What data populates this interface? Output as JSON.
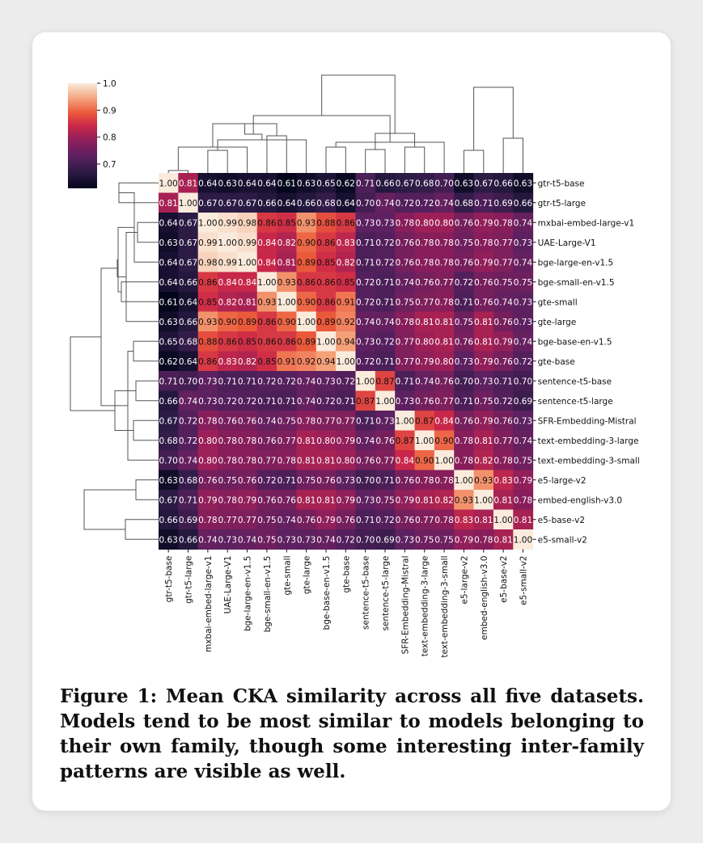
{
  "caption": "Figure 1: Mean CKA similarity across all five datasets. Models tend to be most similar to models belonging to their own family, though some interesting inter-family patterns are visible as well.",
  "colorbar": {
    "ticks": [
      "1.0",
      "0.9",
      "0.8",
      "0.7"
    ],
    "tick_values": [
      1.0,
      0.9,
      0.8,
      0.7
    ],
    "range": [
      0.61,
      1.0
    ]
  },
  "chart_data": {
    "type": "heatmap",
    "title": "",
    "xlabel": "",
    "ylabel": "",
    "colormap": "rocket",
    "labels": [
      "gtr-t5-base",
      "gtr-t5-large",
      "mxbai-embed-large-v1",
      "UAE-Large-V1",
      "bge-large-en-v1.5",
      "bge-small-en-v1.5",
      "gte-small",
      "gte-large",
      "bge-base-en-v1.5",
      "gte-base",
      "sentence-t5-base",
      "sentence-t5-large",
      "SFR-Embedding-Mistral",
      "text-embedding-3-large",
      "text-embedding-3-small",
      "e5-large-v2",
      "embed-english-v3.0",
      "e5-base-v2",
      "e5-small-v2"
    ],
    "values": [
      [
        1.0,
        0.81,
        0.64,
        0.63,
        0.64,
        0.64,
        0.61,
        0.63,
        0.65,
        0.62,
        0.71,
        0.66,
        0.67,
        0.68,
        0.7,
        0.63,
        0.67,
        0.66,
        0.63
      ],
      [
        0.81,
        1.0,
        0.67,
        0.67,
        0.67,
        0.66,
        0.64,
        0.66,
        0.68,
        0.64,
        0.7,
        0.74,
        0.72,
        0.72,
        0.74,
        0.68,
        0.71,
        0.69,
        0.66
      ],
      [
        0.64,
        0.67,
        1.0,
        0.99,
        0.98,
        0.86,
        0.85,
        0.93,
        0.88,
        0.86,
        0.73,
        0.73,
        0.78,
        0.8,
        0.8,
        0.76,
        0.79,
        0.78,
        0.74
      ],
      [
        0.63,
        0.67,
        0.99,
        1.0,
        0.99,
        0.84,
        0.82,
        0.9,
        0.86,
        0.83,
        0.71,
        0.72,
        0.76,
        0.78,
        0.78,
        0.75,
        0.78,
        0.77,
        0.73
      ],
      [
        0.64,
        0.67,
        0.98,
        0.99,
        1.0,
        0.84,
        0.81,
        0.89,
        0.85,
        0.82,
        0.71,
        0.72,
        0.76,
        0.78,
        0.78,
        0.76,
        0.79,
        0.77,
        0.74
      ],
      [
        0.64,
        0.66,
        0.86,
        0.84,
        0.84,
        1.0,
        0.93,
        0.86,
        0.86,
        0.85,
        0.72,
        0.71,
        0.74,
        0.76,
        0.77,
        0.72,
        0.76,
        0.75,
        0.75
      ],
      [
        0.61,
        0.64,
        0.85,
        0.82,
        0.81,
        0.93,
        1.0,
        0.9,
        0.86,
        0.91,
        0.72,
        0.71,
        0.75,
        0.77,
        0.78,
        0.71,
        0.76,
        0.74,
        0.73
      ],
      [
        0.63,
        0.66,
        0.93,
        0.9,
        0.89,
        0.86,
        0.9,
        1.0,
        0.89,
        0.92,
        0.74,
        0.74,
        0.78,
        0.81,
        0.81,
        0.75,
        0.81,
        0.76,
        0.73
      ],
      [
        0.65,
        0.68,
        0.88,
        0.86,
        0.85,
        0.86,
        0.86,
        0.89,
        1.0,
        0.94,
        0.73,
        0.72,
        0.77,
        0.8,
        0.81,
        0.76,
        0.81,
        0.79,
        0.74
      ],
      [
        0.62,
        0.64,
        0.86,
        0.83,
        0.82,
        0.85,
        0.91,
        0.92,
        0.94,
        1.0,
        0.72,
        0.71,
        0.77,
        0.79,
        0.8,
        0.73,
        0.79,
        0.76,
        0.72
      ],
      [
        0.71,
        0.7,
        0.73,
        0.71,
        0.71,
        0.72,
        0.72,
        0.74,
        0.73,
        0.72,
        1.0,
        0.87,
        0.71,
        0.74,
        0.76,
        0.7,
        0.73,
        0.71,
        0.7
      ],
      [
        0.66,
        0.74,
        0.73,
        0.72,
        0.72,
        0.71,
        0.71,
        0.74,
        0.72,
        0.71,
        0.87,
        1.0,
        0.73,
        0.76,
        0.77,
        0.71,
        0.75,
        0.72,
        0.69
      ],
      [
        0.67,
        0.72,
        0.78,
        0.76,
        0.76,
        0.74,
        0.75,
        0.78,
        0.77,
        0.77,
        0.71,
        0.73,
        1.0,
        0.87,
        0.84,
        0.76,
        0.79,
        0.76,
        0.73
      ],
      [
        0.68,
        0.72,
        0.8,
        0.78,
        0.78,
        0.76,
        0.77,
        0.81,
        0.8,
        0.79,
        0.74,
        0.76,
        0.87,
        1.0,
        0.9,
        0.78,
        0.81,
        0.77,
        0.74
      ],
      [
        0.7,
        0.74,
        0.8,
        0.78,
        0.78,
        0.77,
        0.78,
        0.81,
        0.81,
        0.8,
        0.76,
        0.77,
        0.84,
        0.9,
        1.0,
        0.78,
        0.82,
        0.78,
        0.75
      ],
      [
        0.63,
        0.68,
        0.76,
        0.75,
        0.76,
        0.72,
        0.71,
        0.75,
        0.76,
        0.73,
        0.7,
        0.71,
        0.76,
        0.78,
        0.78,
        1.0,
        0.93,
        0.83,
        0.79
      ],
      [
        0.67,
        0.71,
        0.79,
        0.78,
        0.79,
        0.76,
        0.76,
        0.81,
        0.81,
        0.79,
        0.73,
        0.75,
        0.79,
        0.81,
        0.82,
        0.93,
        1.0,
        0.81,
        0.78
      ],
      [
        0.66,
        0.69,
        0.78,
        0.77,
        0.77,
        0.75,
        0.74,
        0.76,
        0.79,
        0.76,
        0.71,
        0.72,
        0.76,
        0.77,
        0.78,
        0.83,
        0.81,
        1.0,
        0.81
      ],
      [
        0.63,
        0.66,
        0.74,
        0.73,
        0.74,
        0.75,
        0.73,
        0.73,
        0.74,
        0.72,
        0.7,
        0.69,
        0.73,
        0.75,
        0.75,
        0.79,
        0.78,
        0.81,
        1.0
      ]
    ],
    "dendrogram": "hierarchical clustering shown on top (columns) and left (rows)"
  }
}
